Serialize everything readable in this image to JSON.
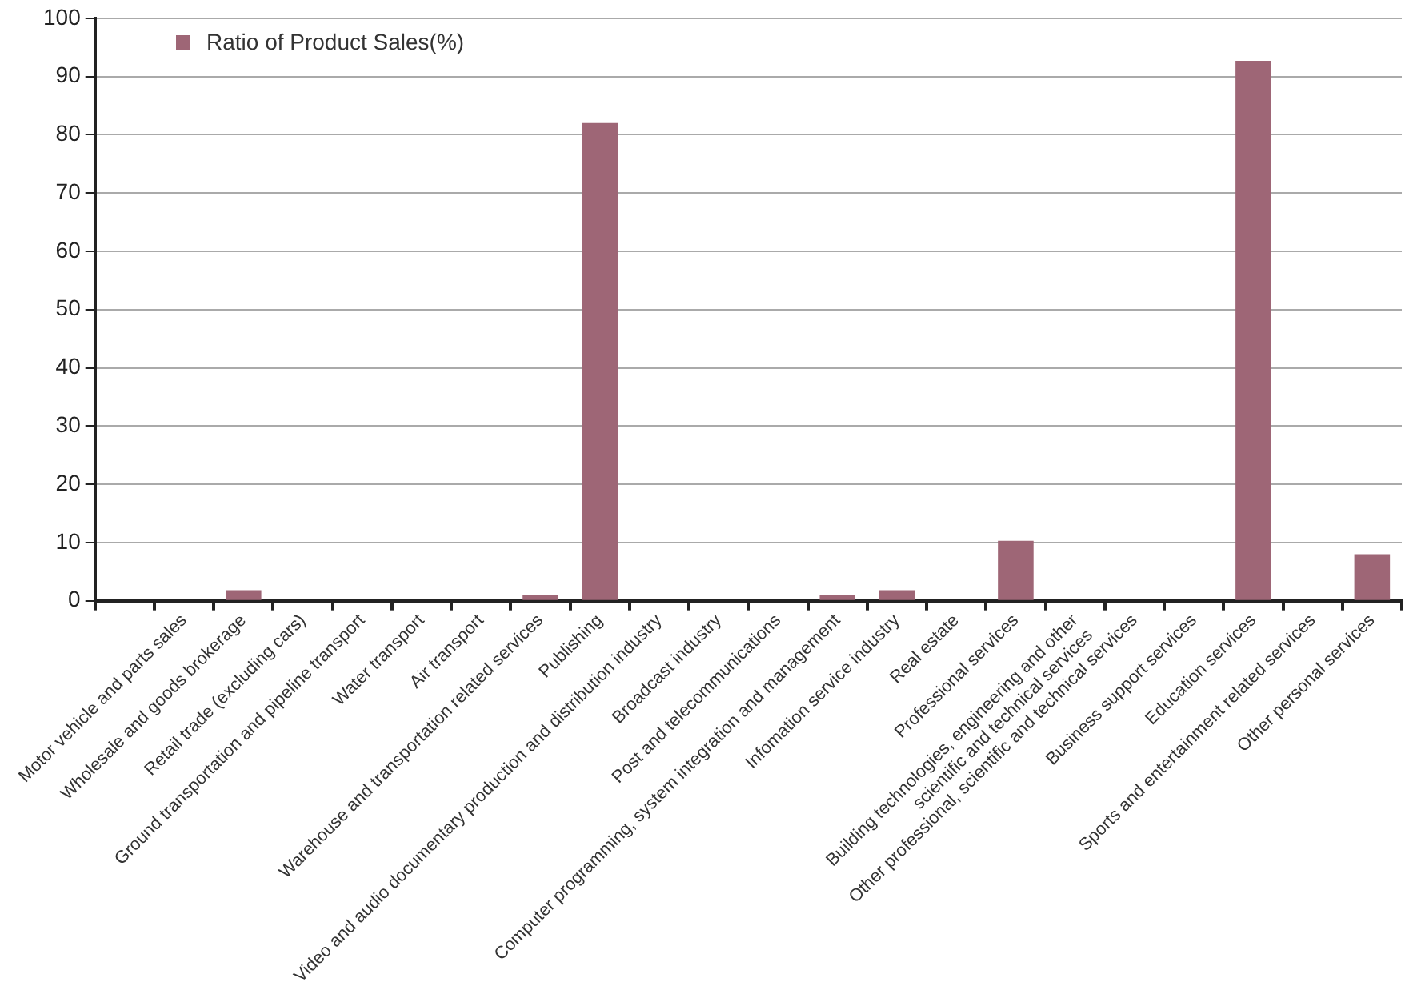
{
  "chart_data": {
    "type": "bar",
    "categories": [
      null,
      "Motor vehicle and parts sales",
      "Wholesale and goods brokerage",
      "Retail trade (excluding cars)",
      "Ground transportation and pipeline transport",
      "Water transport",
      "Air transport",
      "Warehouse and transportation related services",
      "Publishing",
      "Video and audio documentary production and distribution industry",
      "Broadcast industry",
      "Post and telecommunications",
      "Computer programming, system integration and management",
      "Infomation service industry",
      "Real estate",
      "Professional services",
      "Building technologies, engineering and other scientific and technical services",
      "Other professional, scientific and technical services",
      "Business support services",
      "Education services",
      "Sports and entertainment related services",
      "Other personal services"
    ],
    "series": [
      {
        "name": "Ratio of Product Sales(%)",
        "color": "#9e6676",
        "values": [
          0,
          0,
          1.8,
          0,
          0,
          0,
          0,
          0.9,
          82,
          0,
          0,
          0,
          0.9,
          1.8,
          0,
          10.3,
          0,
          0,
          0,
          92.7,
          0,
          8
        ]
      }
    ],
    "ylim": [
      0,
      100
    ],
    "yticks": [
      0,
      10,
      20,
      30,
      40,
      50,
      60,
      70,
      80,
      90,
      100
    ],
    "grid": "y",
    "legend": "top left"
  }
}
